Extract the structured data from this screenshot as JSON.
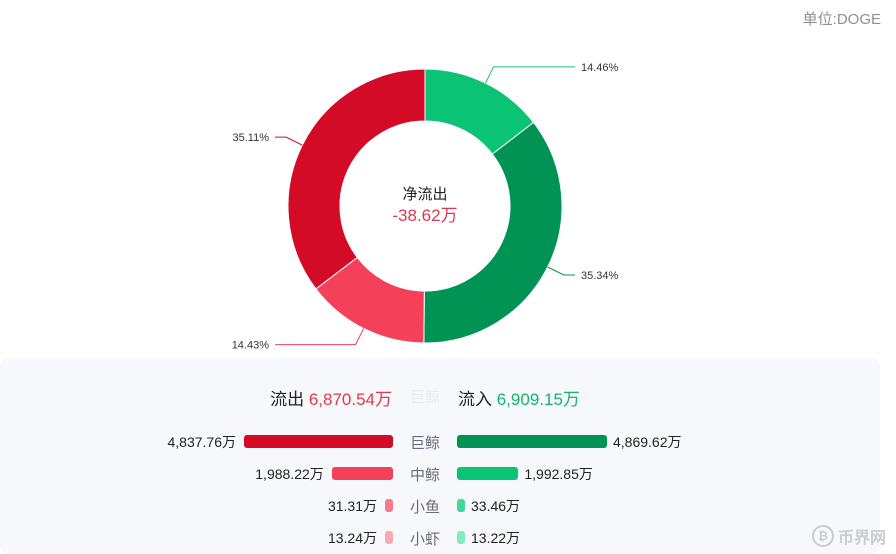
{
  "unit_label": "单位:DOGE",
  "center": {
    "title": "净流出",
    "value": "-38.62万"
  },
  "colors": {
    "whale_out": "#d30b26",
    "mid_out": "#f5405a",
    "small_out": "#f77b8c",
    "shrimp_out": "#f8aab4",
    "whale_in": "#009353",
    "mid_in": "#0bc374",
    "small_in": "#3fd896",
    "shrimp_in": "#7eeec0",
    "leader": "#888888"
  },
  "chart_data": {
    "type": "pie",
    "donut": true,
    "slices": [
      {
        "label": "14.46%",
        "value": 14.46,
        "color": "#0bc374"
      },
      {
        "label": "35.34%",
        "value": 35.34,
        "color": "#009353"
      },
      {
        "label": "14.43%",
        "value": 14.43,
        "color": "#f5405a"
      },
      {
        "label": "35.11%",
        "value": 35.11,
        "color": "#d30b26"
      }
    ]
  },
  "summary": {
    "out_label": "流出",
    "out_value": "6,870.54万",
    "mid_label": "巨鲸",
    "in_label": "流入",
    "in_value": "6,909.15万"
  },
  "rows": [
    {
      "category": "巨鲸",
      "out_value": "4,837.76万",
      "out_num": 4837.76,
      "out_color": "#d30b26",
      "in_value": "4,869.62万",
      "in_num": 4869.62,
      "in_color": "#009353"
    },
    {
      "category": "中鲸",
      "out_value": "1,988.22万",
      "out_num": 1988.22,
      "out_color": "#f5405a",
      "in_value": "1,992.85万",
      "in_num": 1992.85,
      "in_color": "#0bc374"
    },
    {
      "category": "小鱼",
      "out_value": "31.31万",
      "out_num": 31.31,
      "out_color": "#f77b8c",
      "in_value": "33.46万",
      "in_num": 33.46,
      "in_color": "#3fd896"
    },
    {
      "category": "小虾",
      "out_value": "13.24万",
      "out_num": 13.24,
      "out_color": "#f8aab4",
      "in_value": "13.22万",
      "in_num": 13.22,
      "in_color": "#7eeec0"
    }
  ],
  "watermark": {
    "text": "币界网",
    "icon": "bitcoin-coin-icon"
  }
}
